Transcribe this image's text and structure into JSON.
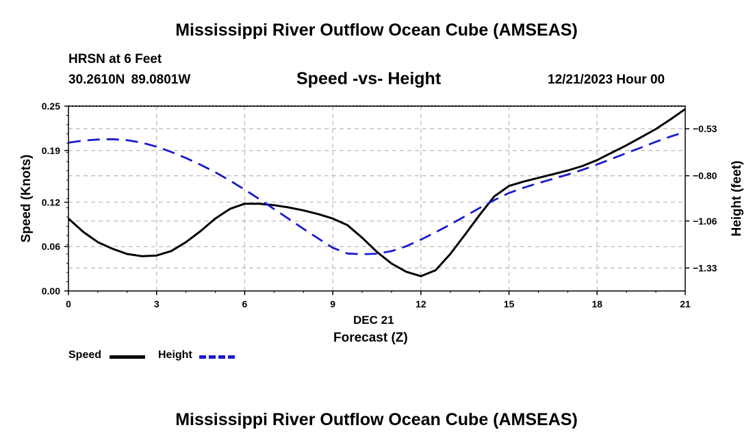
{
  "header": {
    "main_title": "Mississippi River Outflow Ocean Cube (AMSEAS)",
    "station": "HRSN at 6 Feet",
    "coords": "30.2610N  89.0801W",
    "subtitle": "Speed -vs- Height",
    "datetime": "12/21/2023 Hour 00"
  },
  "footer": {
    "title": "Mississippi River Outflow Ocean Cube (AMSEAS)"
  },
  "legend": {
    "speed_label": "Speed",
    "height_label": "Height"
  },
  "colors": {
    "speed": "#000000",
    "height": "#1a1acc",
    "grid": "#bdbdbd"
  },
  "chart_data": {
    "type": "line",
    "title": "Speed -vs- Height",
    "xlabel": "Forecast (Z)",
    "xlabel_date": "DEC 21",
    "ylabel_left": "Speed (Knots)",
    "ylabel_right": "Height (feet)",
    "xlim": [
      0,
      21
    ],
    "ylim_left": [
      0,
      0.25
    ],
    "ylim_right": [
      -1.462,
      -0.4
    ],
    "x_ticks": [
      "0",
      "3",
      "6",
      "9",
      "12",
      "15",
      "18",
      "21"
    ],
    "y_ticks_left": [
      "0.00",
      "0.06",
      "0.12",
      "0.19",
      "0.25"
    ],
    "y_ticks_right": [
      "-0.53",
      "-0.80",
      "-1.06",
      "-1.33"
    ],
    "grid": true,
    "series": [
      {
        "name": "Speed",
        "axis": "left",
        "x": [
          0,
          0.5,
          1,
          1.5,
          2,
          2.5,
          3,
          3.5,
          4,
          4.5,
          5,
          5.5,
          6,
          6.5,
          7,
          7.5,
          8,
          8.5,
          9,
          9.5,
          10,
          10.5,
          11,
          11.5,
          12,
          12.5,
          13,
          13.5,
          14,
          14.5,
          15,
          15.5,
          16,
          16.5,
          17,
          17.5,
          18,
          18.5,
          19,
          19.5,
          20,
          20.5,
          21
        ],
        "values": [
          0.098,
          0.08,
          0.066,
          0.057,
          0.05,
          0.047,
          0.048,
          0.054,
          0.066,
          0.081,
          0.098,
          0.111,
          0.118,
          0.118,
          0.116,
          0.113,
          0.109,
          0.104,
          0.098,
          0.089,
          0.072,
          0.053,
          0.037,
          0.026,
          0.02,
          0.028,
          0.05,
          0.076,
          0.103,
          0.128,
          0.142,
          0.148,
          0.153,
          0.158,
          0.163,
          0.169,
          0.177,
          0.187,
          0.197,
          0.208,
          0.219,
          0.232,
          0.246
        ]
      },
      {
        "name": "Height",
        "axis": "right",
        "x": [
          0,
          0.5,
          1,
          1.5,
          2,
          2.5,
          3,
          3.5,
          4,
          4.5,
          5,
          5.5,
          6,
          6.5,
          7,
          7.5,
          8,
          8.5,
          9,
          9.5,
          10,
          10.5,
          11,
          11.5,
          12,
          12.5,
          13,
          13.5,
          14,
          14.5,
          15,
          15.5,
          16,
          16.5,
          17,
          17.5,
          18,
          18.5,
          19,
          19.5,
          20,
          20.5,
          21
        ],
        "values": [
          -0.61,
          -0.598,
          -0.592,
          -0.59,
          -0.596,
          -0.61,
          -0.633,
          -0.663,
          -0.698,
          -0.737,
          -0.78,
          -0.828,
          -0.88,
          -0.934,
          -0.991,
          -1.048,
          -1.105,
          -1.16,
          -1.214,
          -1.247,
          -1.251,
          -1.248,
          -1.233,
          -1.205,
          -1.167,
          -1.125,
          -1.08,
          -1.033,
          -0.985,
          -0.94,
          -0.899,
          -0.869,
          -0.842,
          -0.818,
          -0.793,
          -0.766,
          -0.735,
          -0.703,
          -0.67,
          -0.638,
          -0.605,
          -0.575,
          -0.548
        ]
      }
    ]
  }
}
